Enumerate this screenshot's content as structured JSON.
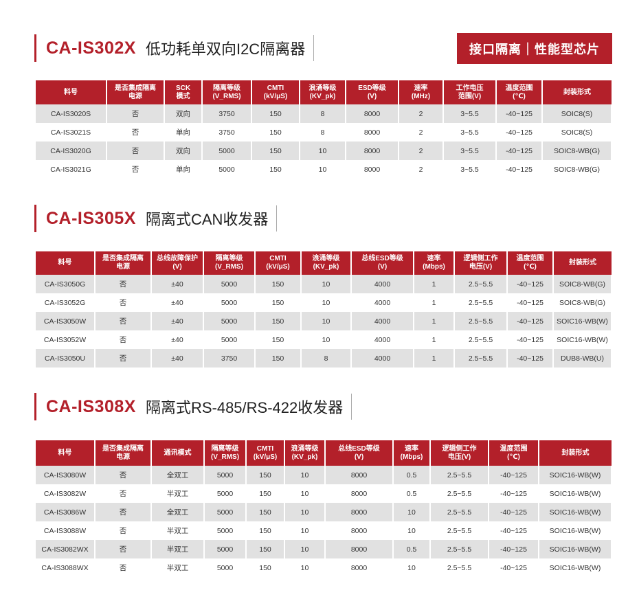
{
  "badge": "接口隔离｜性能型芯片",
  "colors": {
    "accent": "#b3202a",
    "row_alt": "#e1e1e1"
  },
  "sections": [
    {
      "code": "CA-IS302X",
      "name": "低功耗单双向I2C隔离器",
      "headers": [
        [
          "料号",
          ""
        ],
        [
          "是否集成隔离",
          "电源"
        ],
        [
          "SCK",
          "模式"
        ],
        [
          "隔离等级",
          "(V_RMS)"
        ],
        [
          "CMTI",
          "(kV/μS)"
        ],
        [
          "浪涌等级",
          "(KV_pk)"
        ],
        [
          "ESD等级",
          "(V)"
        ],
        [
          "速率",
          "(MHz)"
        ],
        [
          "工作电压",
          "范围(V)"
        ],
        [
          "温度范围",
          "(℃)"
        ],
        [
          "封装形式",
          ""
        ]
      ],
      "rows": [
        [
          "CA-IS3020S",
          "否",
          "双向",
          "3750",
          "150",
          "8",
          "8000",
          "2",
          "3~5.5",
          "-40~125",
          "SOIC8(S)"
        ],
        [
          "CA-IS3021S",
          "否",
          "单向",
          "3750",
          "150",
          "8",
          "8000",
          "2",
          "3~5.5",
          "-40~125",
          "SOIC8(S)"
        ],
        [
          "CA-IS3020G",
          "否",
          "双向",
          "5000",
          "150",
          "10",
          "8000",
          "2",
          "3~5.5",
          "-40~125",
          "SOIC8-WB(G)"
        ],
        [
          "CA-IS3021G",
          "否",
          "单向",
          "5000",
          "150",
          "10",
          "8000",
          "2",
          "3~5.5",
          "-40~125",
          "SOIC8-WB(G)"
        ]
      ]
    },
    {
      "code": "CA-IS305X",
      "name": "隔离式CAN收发器",
      "headers": [
        [
          "料号",
          ""
        ],
        [
          "是否集成隔离",
          "电源"
        ],
        [
          "总线故障保护",
          "(V)"
        ],
        [
          "隔离等级",
          "(V_RMS)"
        ],
        [
          "CMTI",
          "(kV/μS)"
        ],
        [
          "浪涌等级",
          "(KV_pk)"
        ],
        [
          "总线ESD等级",
          "(V)"
        ],
        [
          "速率",
          "(Mbps)"
        ],
        [
          "逻辑侧工作",
          "电压(V)"
        ],
        [
          "温度范围",
          "(℃)"
        ],
        [
          "封装形式",
          ""
        ]
      ],
      "rows": [
        [
          "CA-IS3050G",
          "否",
          "±40",
          "5000",
          "150",
          "10",
          "4000",
          "1",
          "2.5~5.5",
          "-40~125",
          "SOIC8-WB(G)"
        ],
        [
          "CA-IS3052G",
          "否",
          "±40",
          "5000",
          "150",
          "10",
          "4000",
          "1",
          "2.5~5.5",
          "-40~125",
          "SOIC8-WB(G)"
        ],
        [
          "CA-IS3050W",
          "否",
          "±40",
          "5000",
          "150",
          "10",
          "4000",
          "1",
          "2.5~5.5",
          "-40~125",
          "SOIC16-WB(W)"
        ],
        [
          "CA-IS3052W",
          "否",
          "±40",
          "5000",
          "150",
          "10",
          "4000",
          "1",
          "2.5~5.5",
          "-40~125",
          "SOIC16-WB(W)"
        ],
        [
          "CA-IS3050U",
          "否",
          "±40",
          "3750",
          "150",
          "8",
          "4000",
          "1",
          "2.5~5.5",
          "-40~125",
          "DUB8-WB(U)"
        ]
      ]
    },
    {
      "code": "CA-IS308X",
      "name": "隔离式RS-485/RS-422收发器",
      "headers": [
        [
          "料号",
          ""
        ],
        [
          "是否集成隔离",
          "电源"
        ],
        [
          "通讯模式",
          ""
        ],
        [
          "隔离等级",
          "(V_RMS)"
        ],
        [
          "CMTI",
          "(kV/μS)"
        ],
        [
          "浪涌等级",
          "(KV_pk)"
        ],
        [
          "总线ESD等级",
          "(V)"
        ],
        [
          "速率",
          "(Mbps)"
        ],
        [
          "逻辑侧工作",
          "电压(V)"
        ],
        [
          "温度范围",
          "(℃)"
        ],
        [
          "封装形式",
          ""
        ]
      ],
      "rows": [
        [
          "CA-IS3080W",
          "否",
          "全双工",
          "5000",
          "150",
          "10",
          "8000",
          "0.5",
          "2.5~5.5",
          "-40~125",
          "SOIC16-WB(W)"
        ],
        [
          "CA-IS3082W",
          "否",
          "半双工",
          "5000",
          "150",
          "10",
          "8000",
          "0.5",
          "2.5~5.5",
          "-40~125",
          "SOIC16-WB(W)"
        ],
        [
          "CA-IS3086W",
          "否",
          "全双工",
          "5000",
          "150",
          "10",
          "8000",
          "10",
          "2.5~5.5",
          "-40~125",
          "SOIC16-WB(W)"
        ],
        [
          "CA-IS3088W",
          "否",
          "半双工",
          "5000",
          "150",
          "10",
          "8000",
          "10",
          "2.5~5.5",
          "-40~125",
          "SOIC16-WB(W)"
        ],
        [
          "CA-IS3082WX",
          "否",
          "半双工",
          "5000",
          "150",
          "10",
          "8000",
          "0.5",
          "2.5~5.5",
          "-40~125",
          "SOIC16-WB(W)"
        ],
        [
          "CA-IS3088WX",
          "否",
          "半双工",
          "5000",
          "150",
          "10",
          "8000",
          "10",
          "2.5~5.5",
          "-40~125",
          "SOIC16-WB(W)"
        ]
      ]
    }
  ]
}
